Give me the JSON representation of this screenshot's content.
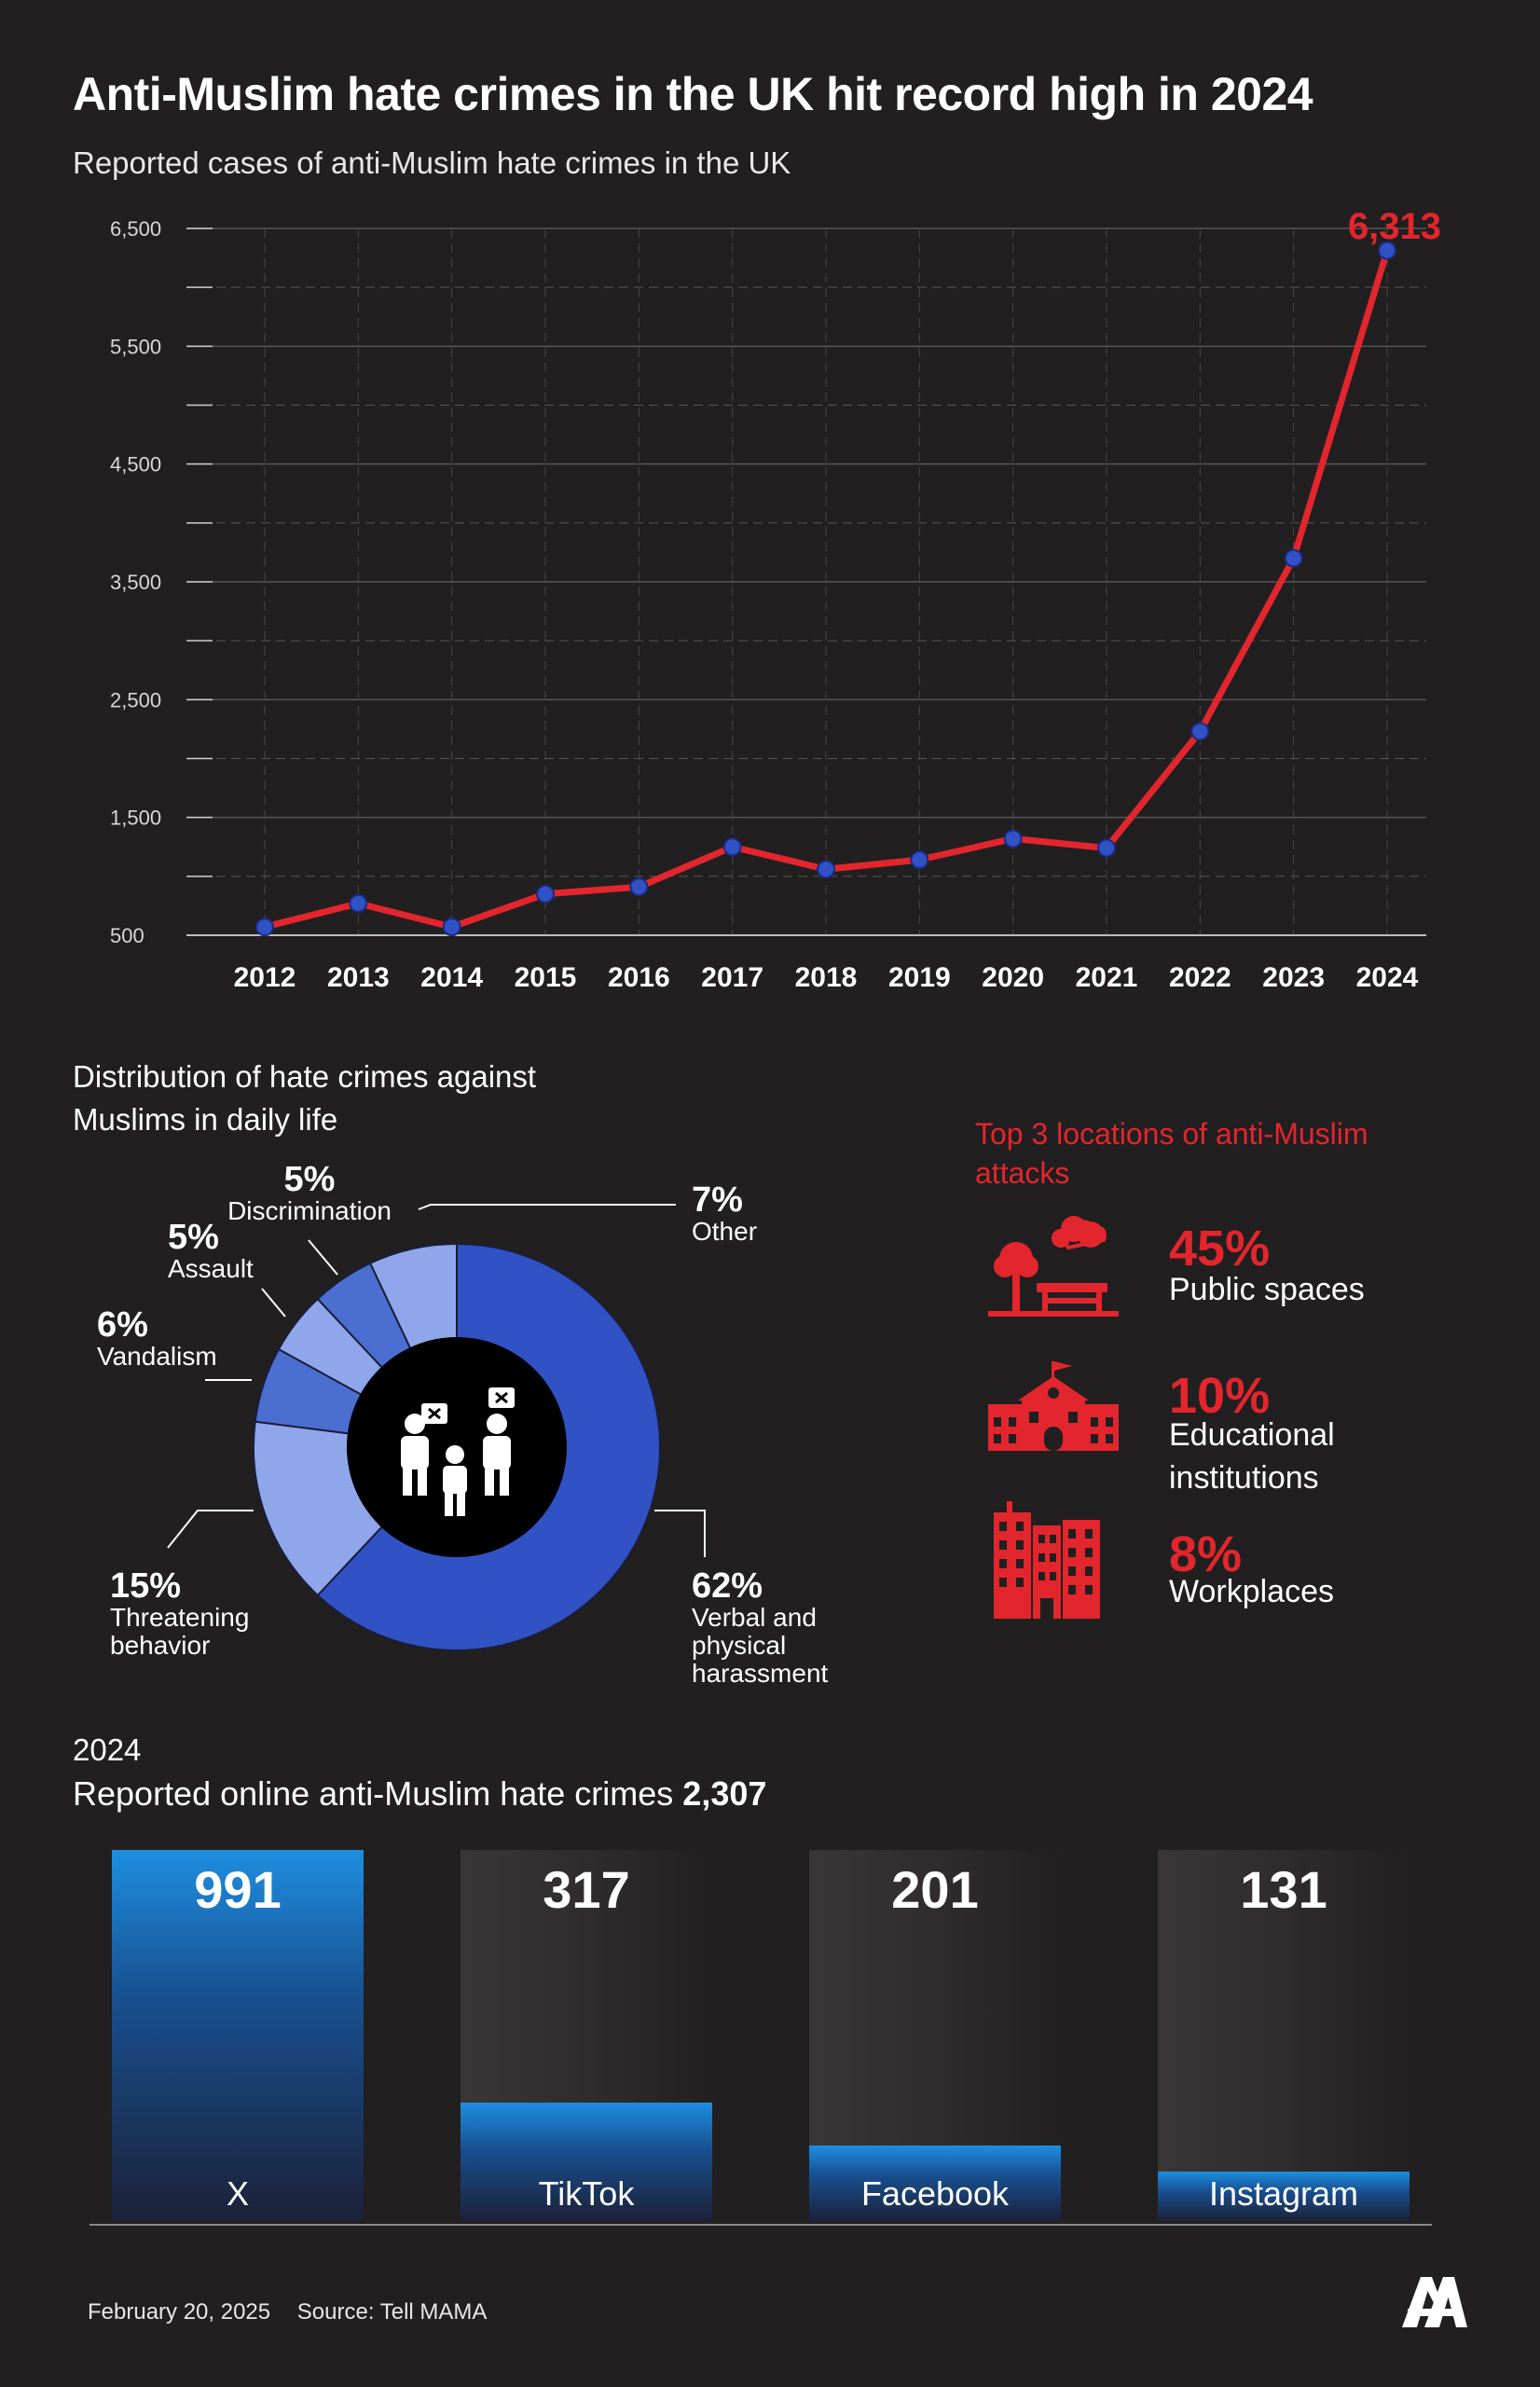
{
  "title": "Anti-Muslim hate crimes in the UK hit record high in 2024",
  "subtitle": "Reported cases of anti-Muslim hate crimes in the UK",
  "colors": {
    "background": "#221f20",
    "accent_red": "#e3262e",
    "line_red": "#e3262e",
    "point_blue": "#3152c4",
    "donut_dark": "#3152c4",
    "donut_mid": "#4a6fd0",
    "donut_light": "#8fa7ea",
    "bar_blue": "#1e8ee0"
  },
  "chart_data": [
    {
      "type": "line",
      "title": "Reported cases of anti-Muslim hate crimes in the UK",
      "x": [
        "2012",
        "2013",
        "2014",
        "2015",
        "2016",
        "2017",
        "2018",
        "2019",
        "2020",
        "2021",
        "2022",
        "2023",
        "2024"
      ],
      "series": [
        {
          "values": [
            570,
            770,
            570,
            850,
            910,
            1250,
            1060,
            1140,
            1320,
            1240,
            2230,
            3700,
            6313
          ]
        }
      ],
      "y_ticks": [
        "6,500",
        "5,500",
        "4,500",
        "3,500",
        "2,500",
        "1,500",
        "500"
      ],
      "ylim": [
        500,
        6500
      ],
      "grid": true,
      "annotations": [
        {
          "x": "2024",
          "text": "6,313"
        }
      ]
    },
    {
      "type": "pie",
      "title": "Distribution of hate crimes against Muslims in daily life",
      "slices": [
        {
          "label": "Verbal and physical harassment",
          "value": 62,
          "pct": "62%"
        },
        {
          "label": "Threatening behavior",
          "value": 15,
          "pct": "15%"
        },
        {
          "label": "Vandalism",
          "value": 6,
          "pct": "6%"
        },
        {
          "label": "Assault",
          "value": 5,
          "pct": "5%"
        },
        {
          "label": "Discrimination",
          "value": 5,
          "pct": "5%"
        },
        {
          "label": "Other",
          "value": 7,
          "pct": "7%"
        }
      ]
    },
    {
      "type": "bar",
      "title": "Reported online anti-Muslim hate crimes",
      "categories": [
        "X",
        "TikTok",
        "Facebook",
        "Instagram"
      ],
      "values": [
        991,
        317,
        201,
        131
      ],
      "value_labels": [
        "991",
        "317",
        "201",
        "131"
      ]
    }
  ],
  "distribution": {
    "title": "Distribution of hate crimes against Muslims in daily life",
    "labels": {
      "discrimination": {
        "pct": "5%",
        "name": "Discrimination"
      },
      "assault": {
        "pct": "5%",
        "name": "Assault"
      },
      "vandalism": {
        "pct": "6%",
        "name": "Vandalism"
      },
      "threatening": {
        "pct": "15%",
        "name_1": "Threatening",
        "name_2": "behavior"
      },
      "other": {
        "pct": "7%",
        "name": "Other"
      },
      "verbal": {
        "pct": "62%",
        "name_1": "Verbal and",
        "name_2": "physical",
        "name_3": "harassment"
      }
    },
    "center_icon": "people-dispute-icon"
  },
  "locations": {
    "title": "Top 3 locations of anti-Muslim attacks",
    "items": [
      {
        "pct": "45%",
        "name": "Public spaces",
        "icon": "park-bench-icon",
        "value": 45
      },
      {
        "pct": "10%",
        "name_1": "Educational",
        "name_2": "institutions",
        "icon": "school-building-icon",
        "value": 10
      },
      {
        "pct": "8%",
        "name": "Workplaces",
        "icon": "office-buildings-icon",
        "value": 8
      }
    ]
  },
  "online": {
    "year": "2024",
    "label": "Reported online anti-Muslim hate crimes",
    "total": "2,307"
  },
  "footer": {
    "date": "February 20, 2025",
    "source": "Source: Tell MAMA",
    "logo": "anadolu-agency-logo"
  }
}
